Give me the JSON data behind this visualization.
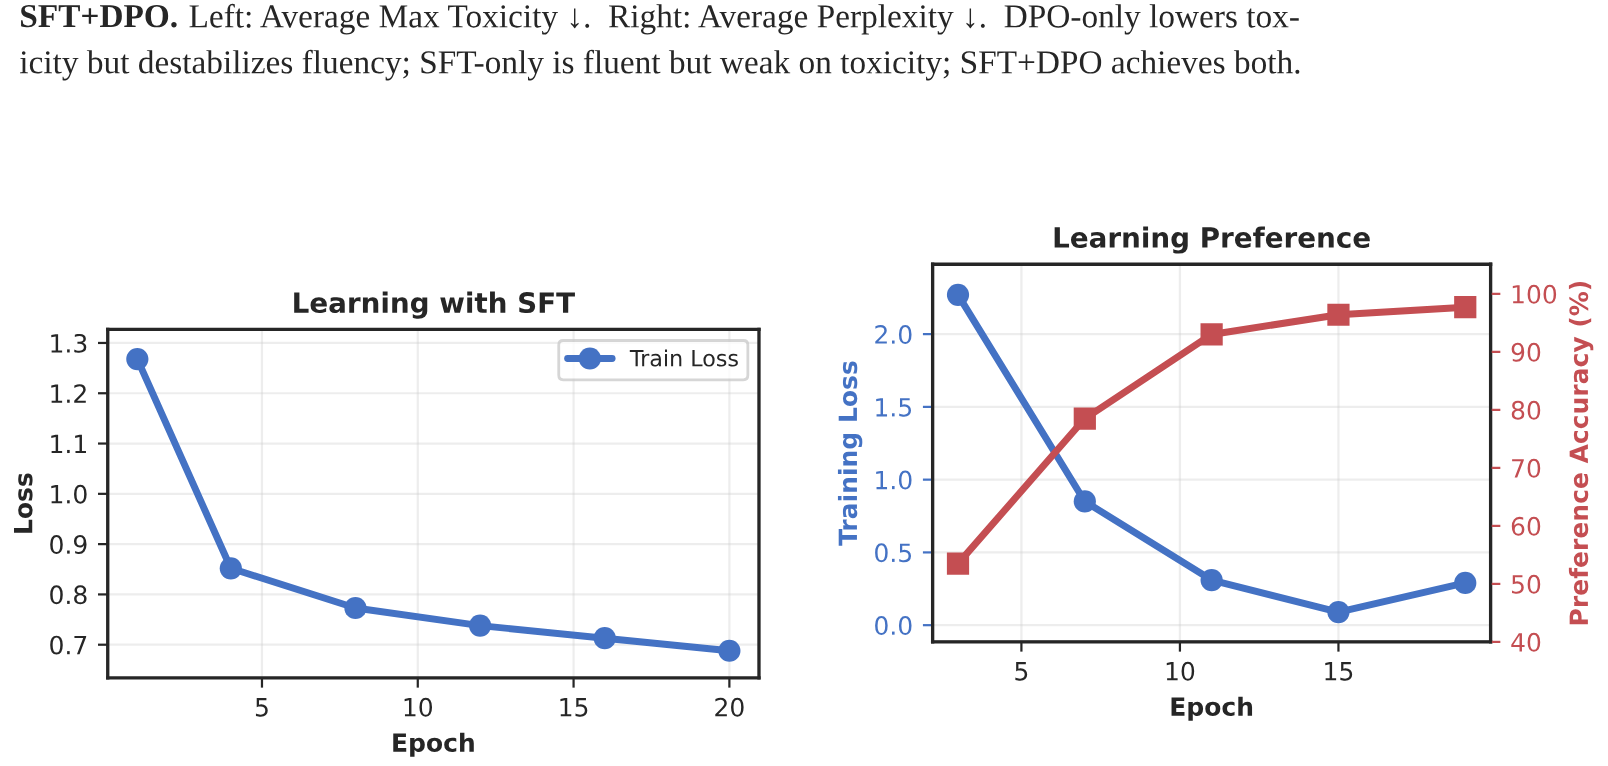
{
  "chart_data": [
    {
      "type": "line",
      "title": "Learning with SFT",
      "xlabel": "Epoch",
      "ylabel": "Loss",
      "annotations": [
        "SFT+DPO.",
        "Left: Average Max Toxicity ↓.  Right: Average Perplexity ↓.  DPO-only lowers tox-\nicity but destabilizes fluency; SFT-only is fluent but weak on toxicity; SFT+DPO achieves both."
      ],
      "x": [
        1,
        4,
        8,
        12,
        16,
        20
      ],
      "series": [
        {
          "name": "Train Loss",
          "color": "#4472c4",
          "marker": "circle",
          "values": [
            1.268,
            0.852,
            0.773,
            0.738,
            0.713,
            0.688
          ]
        }
      ],
      "xlim": [
        0.05,
        20.95
      ],
      "ylim": [
        0.634,
        1.327
      ],
      "xticks": [
        5,
        10,
        15,
        20
      ],
      "yticks": [
        0.7,
        0.8,
        0.9,
        {
          "value": 1,
          "label": "1.0"
        },
        1.1,
        1.2,
        1.3
      ],
      "grid": true,
      "legend": "top right",
      "line_style": "solid"
    },
    {
      "type": "line",
      "title": "Learning Preference",
      "xlabel": "Epoch",
      "ylabel": "Training Loss",
      "y2label": "Preference Accuracy (%)",
      "x": [
        3,
        7,
        11,
        15,
        19
      ],
      "series": [
        {
          "color": "#4472c4",
          "marker": "circle",
          "values": [
            2.27,
            0.85,
            0.31,
            0.09,
            0.29
          ]
        },
        {
          "color": "#c44e52",
          "marker": "square",
          "axis": "y2",
          "values": [
            53.5,
            78.5,
            93.0,
            96.4,
            97.7
          ]
        }
      ],
      "xlim": [
        2.2,
        19.8
      ],
      "ylim": [
        -0.115,
        2.48
      ],
      "y2lim": [
        40,
        105.1
      ],
      "xticks": [
        5,
        10,
        15
      ],
      "yticks": [
        {
          "value": 0,
          "label": "0.0"
        },
        0.5,
        {
          "value": 1,
          "label": "1.0"
        },
        1.5,
        {
          "value": 2,
          "label": "2.0"
        }
      ],
      "y2ticks": [
        40,
        50,
        60,
        70,
        80,
        90,
        100
      ],
      "grid": true,
      "line_style": "solid"
    }
  ]
}
